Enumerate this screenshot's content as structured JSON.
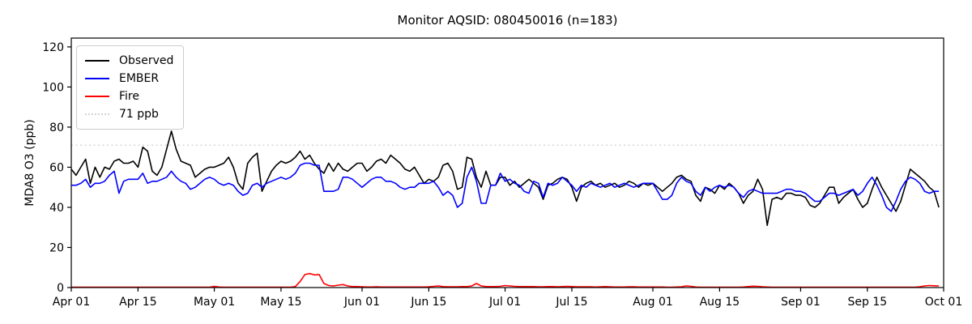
{
  "figure": {
    "title": "Monitor AQSID: 080450016 (n=183)",
    "background": "#ffffff"
  },
  "chart_data": {
    "type": "line",
    "title": "Monitor AQSID: 080450016 (n=183)",
    "xlabel": "",
    "ylabel": "MDA8 O3 (ppb)",
    "ylim": [
      0,
      124.4
    ],
    "yticks": [
      0,
      20,
      40,
      60,
      80,
      100,
      120
    ],
    "x_total_days": 183,
    "x_start": "Apr 01",
    "x_end": "Oct 01",
    "xticks": [
      {
        "label": "Apr 01",
        "day": 0
      },
      {
        "label": "Apr 15",
        "day": 14
      },
      {
        "label": "May 01",
        "day": 30
      },
      {
        "label": "May 15",
        "day": 44
      },
      {
        "label": "Jun 01",
        "day": 61
      },
      {
        "label": "Jun 15",
        "day": 75
      },
      {
        "label": "Jul 01",
        "day": 91
      },
      {
        "label": "Jul 15",
        "day": 105
      },
      {
        "label": "Aug 01",
        "day": 122
      },
      {
        "label": "Aug 15",
        "day": 136
      },
      {
        "label": "Sep 01",
        "day": 153
      },
      {
        "label": "Sep 15",
        "day": 167
      },
      {
        "label": "Oct 01",
        "day": 183
      }
    ],
    "grid": false,
    "legend_position": "upper left",
    "axis_color": "#000000",
    "text_color": "#000000",
    "reference_line": {
      "label": "71 ppb",
      "value": 71,
      "color": "#d3d3d3",
      "style": "dotted"
    },
    "legend": [
      {
        "label": "Observed",
        "color": "#000000",
        "style": "solid"
      },
      {
        "label": "EMBER",
        "color": "#0000ff",
        "style": "solid"
      },
      {
        "label": "Fire",
        "color": "#ff0000",
        "style": "solid"
      },
      {
        "label": "71 ppb",
        "color": "#d3d3d3",
        "style": "dotted"
      }
    ],
    "series": [
      {
        "name": "Observed",
        "color": "#000000",
        "values": [
          59,
          56,
          60,
          64,
          52,
          60,
          55,
          60,
          59,
          63,
          64,
          62,
          62,
          63,
          60,
          70,
          68,
          58,
          56,
          60,
          69,
          78,
          69,
          63,
          62,
          61,
          55,
          57,
          59,
          60,
          60,
          61,
          62,
          65,
          60,
          52,
          49,
          62,
          65,
          67,
          48,
          53,
          58,
          61,
          63,
          62,
          63,
          65,
          68,
          64,
          66,
          62,
          59,
          57,
          62,
          58,
          62,
          59,
          58,
          60,
          62,
          62,
          58,
          60,
          63,
          64,
          62,
          66,
          64,
          62,
          59,
          58,
          60,
          56,
          52,
          54,
          53,
          55,
          61,
          62,
          58,
          49,
          50,
          65,
          64,
          55,
          50,
          58,
          51,
          51,
          55,
          55,
          51,
          53,
          50,
          52,
          54,
          52,
          50,
          44,
          51,
          52,
          54,
          55,
          54,
          50,
          43,
          50,
          52,
          53,
          51,
          52,
          50,
          51,
          52,
          50,
          51,
          53,
          52,
          50,
          52,
          51,
          52,
          50,
          48,
          50,
          52,
          55,
          56,
          54,
          53,
          46,
          43,
          50,
          49,
          47,
          51,
          49,
          52,
          50,
          47,
          42,
          46,
          48,
          54,
          49,
          31,
          44,
          45,
          44,
          47,
          47,
          46,
          46,
          45,
          41,
          40,
          42,
          46,
          50,
          50,
          42,
          45,
          47,
          49,
          44,
          40,
          42,
          49,
          55,
          50,
          46,
          42,
          38,
          43,
          51,
          59,
          57,
          55,
          53,
          50,
          48,
          40
        ]
      },
      {
        "name": "EMBER",
        "color": "#0000ff",
        "values": [
          51,
          51,
          52,
          54,
          50,
          52,
          52,
          53,
          56,
          58,
          47,
          53,
          54,
          54,
          54,
          57,
          52,
          53,
          53,
          54,
          55,
          58,
          55,
          53,
          52,
          49,
          50,
          52,
          54,
          55,
          54,
          52,
          51,
          52,
          51,
          48,
          46,
          47,
          51,
          52,
          50,
          52,
          53,
          54,
          55,
          54,
          55,
          57,
          61,
          62,
          62,
          61,
          61,
          48,
          48,
          48,
          49,
          55,
          55,
          54,
          52,
          50,
          52,
          54,
          55,
          55,
          53,
          53,
          52,
          50,
          49,
          50,
          50,
          52,
          52,
          52,
          53,
          50,
          46,
          48,
          46,
          40,
          42,
          55,
          60,
          53,
          42,
          42,
          51,
          51,
          57,
          53,
          54,
          52,
          51,
          48,
          47,
          53,
          52,
          45,
          52,
          51,
          52,
          55,
          53,
          51,
          48,
          51,
          50,
          52,
          51,
          50,
          51,
          52,
          50,
          51,
          52,
          51,
          50,
          51,
          52,
          52,
          52,
          48,
          44,
          44,
          46,
          52,
          55,
          53,
          52,
          48,
          46,
          50,
          48,
          50,
          51,
          50,
          51,
          50,
          47,
          45,
          48,
          49,
          48,
          47,
          47,
          47,
          47,
          48,
          49,
          49,
          48,
          48,
          47,
          45,
          43,
          43,
          45,
          47,
          47,
          46,
          47,
          48,
          49,
          46,
          48,
          52,
          55,
          51,
          46,
          40,
          38,
          43,
          49,
          53,
          55,
          54,
          52,
          48,
          47,
          48,
          48
        ]
      },
      {
        "name": "Fire",
        "color": "#ff0000",
        "values": [
          0.2,
          0.2,
          0.2,
          0.2,
          0.2,
          0.2,
          0.2,
          0.2,
          0.2,
          0.2,
          0.2,
          0.2,
          0.2,
          0.2,
          0.2,
          0.2,
          0.2,
          0.2,
          0.2,
          0.2,
          0.2,
          0.2,
          0.2,
          0.2,
          0.2,
          0.2,
          0.2,
          0.2,
          0.2,
          0.2,
          0.6,
          0.3,
          0.2,
          0.2,
          0.2,
          0.2,
          0.2,
          0.2,
          0.2,
          0.2,
          0.2,
          0.2,
          0.2,
          0.2,
          0.2,
          0.2,
          0.2,
          0.5,
          3,
          6.5,
          7,
          6.3,
          6.5,
          2,
          1,
          0.8,
          1.2,
          1.5,
          0.8,
          0.5,
          0.5,
          0.4,
          0.3,
          0.3,
          0.4,
          0.3,
          0.3,
          0.3,
          0.3,
          0.3,
          0.3,
          0.3,
          0.3,
          0.3,
          0.3,
          0.4,
          0.6,
          0.8,
          0.5,
          0.4,
          0.4,
          0.4,
          0.5,
          0.5,
          0.8,
          2,
          0.8,
          0.5,
          0.5,
          0.5,
          0.6,
          1,
          0.8,
          0.6,
          0.5,
          0.5,
          0.5,
          0.5,
          0.4,
          0.4,
          0.5,
          0.5,
          0.4,
          0.5,
          0.6,
          0.5,
          0.4,
          0.4,
          0.4,
          0.4,
          0.3,
          0.4,
          0.5,
          0.4,
          0.3,
          0.3,
          0.3,
          0.4,
          0.4,
          0.3,
          0.3,
          0.3,
          0.3,
          0.3,
          0.3,
          0.2,
          0.2,
          0.3,
          0.4,
          0.8,
          0.6,
          0.3,
          0.2,
          0.2,
          0.2,
          0.2,
          0.2,
          0.2,
          0.2,
          0.2,
          0.2,
          0.3,
          0.5,
          0.7,
          0.6,
          0.4,
          0.3,
          0.2,
          0.2,
          0.2,
          0.2,
          0.2,
          0.2,
          0.2,
          0.2,
          0.2,
          0.2,
          0.2,
          0.2,
          0.2,
          0.2,
          0.2,
          0.2,
          0.2,
          0.2,
          0.2,
          0.2,
          0.2,
          0.2,
          0.2,
          0.2,
          0.2,
          0.2,
          0.2,
          0.2,
          0.2,
          0.2,
          0.2,
          0.4,
          0.8,
          1.0,
          0.9,
          0.8
        ]
      }
    ]
  }
}
